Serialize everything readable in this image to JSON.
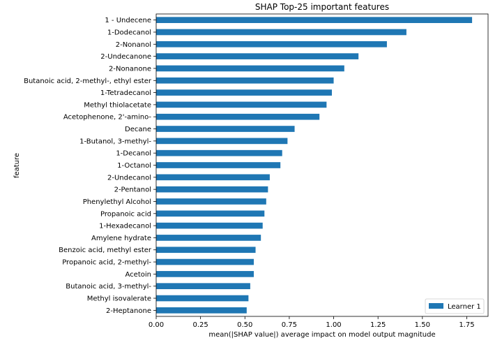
{
  "chart_data": {
    "type": "bar",
    "orientation": "horizontal",
    "title": "SHAP Top-25 important features",
    "xlabel": "mean(|SHAP value|) average impact on model output magnitude",
    "ylabel": "feature",
    "xlim": [
      0,
      1.87
    ],
    "xticks": [
      "0.00",
      "0.25",
      "0.50",
      "0.75",
      "1.00",
      "1.25",
      "1.50",
      "1.75"
    ],
    "grid": false,
    "legend_position": "bottom-right",
    "bar_color": "#1f77b4",
    "categories": [
      "1 - Undecene",
      "1-Dodecanol",
      "2-Nonanol",
      "2-Undecanone",
      "2-Nonanone ",
      "Butanoic acid, 2-methyl-, ethyl ester",
      "1-Tetradecanol",
      "Methyl thiolacetate",
      "Acetophenone, 2'-amino-",
      "Decane",
      "1-Butanol, 3-methyl-",
      "1-Decanol",
      "1-Octanol",
      "2-Undecanol",
      "2-Pentanol",
      "Phenylethyl Alcohol",
      "Propanoic acid",
      "1-Hexadecanol",
      "Amylene hydrate",
      "Benzoic acid, methyl ester",
      "Propanoic acid, 2-methyl-",
      "Acetoin",
      "Butanoic acid, 3-methyl-",
      "Methyl isovalerate",
      "2-Heptanone"
    ],
    "series": [
      {
        "name": "Learner 1",
        "values": [
          1.78,
          1.41,
          1.3,
          1.14,
          1.06,
          1.0,
          0.99,
          0.96,
          0.92,
          0.78,
          0.74,
          0.71,
          0.7,
          0.64,
          0.63,
          0.62,
          0.61,
          0.6,
          0.59,
          0.56,
          0.55,
          0.55,
          0.53,
          0.52,
          0.51
        ]
      }
    ]
  }
}
